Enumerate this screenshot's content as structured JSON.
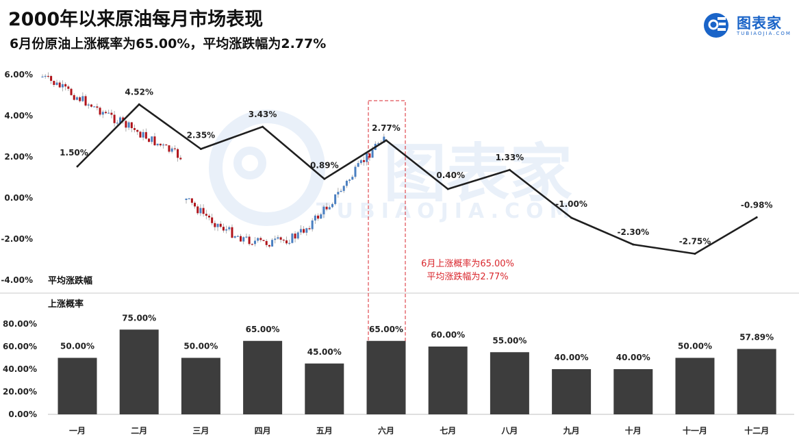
{
  "title": "2000年以来原油每月市场表现",
  "subtitle": "6月份原油上涨概率为65.00%，平均涨跌幅为2.77%",
  "logo": {
    "name": "图表家",
    "sub": "TUBIAOJIA.COM",
    "color": "#1a64c8"
  },
  "watermark": {
    "main": "图表家",
    "sub": "TUBIAOJIA.COM"
  },
  "colors": {
    "line": "#1f1f1f",
    "bar": "#3d3d3d",
    "up": "#4a7fc1",
    "down": "#b0131a",
    "highlight": "#d9262c"
  },
  "annotation": {
    "line1": "6月上涨概率为65.00%",
    "line2": "平均涨跌幅为2.77%",
    "highlight_month": "六月"
  },
  "chart_data": [
    {
      "type": "line",
      "ylabel": "平均涨跌幅",
      "ylim": [
        -0.04,
        0.06
      ],
      "yticks": [
        "6.00%",
        "4.00%",
        "2.00%",
        "0.00%",
        "-2.00%",
        "-4.00%"
      ],
      "categories": [
        "一月",
        "二月",
        "三月",
        "四月",
        "五月",
        "六月",
        "七月",
        "八月",
        "九月",
        "十月",
        "十一月",
        "十二月"
      ],
      "values": [
        0.015,
        0.0452,
        0.0235,
        0.0343,
        0.0089,
        0.0277,
        0.004,
        0.0133,
        -0.01,
        -0.023,
        -0.0275,
        -0.0098
      ],
      "labels": [
        "1.50%",
        "4.52%",
        "2.35%",
        "3.43%",
        "0.89%",
        "2.77%",
        "0.40%",
        "1.33%",
        "-1.00%",
        "-2.30%",
        "-2.75%",
        "-0.98%"
      ]
    },
    {
      "type": "bar",
      "ylabel": "上涨概率",
      "ylim": [
        0,
        0.8
      ],
      "yticks": [
        "80.00%",
        "60.00%",
        "40.00%",
        "20.00%",
        "0.00%"
      ],
      "categories": [
        "一月",
        "二月",
        "三月",
        "四月",
        "五月",
        "六月",
        "七月",
        "八月",
        "九月",
        "十月",
        "十一月",
        "十二月"
      ],
      "values": [
        0.5,
        0.75,
        0.5,
        0.65,
        0.45,
        0.65,
        0.6,
        0.55,
        0.4,
        0.4,
        0.5,
        0.5789
      ],
      "labels": [
        "50.00%",
        "75.00%",
        "50.00%",
        "65.00%",
        "45.00%",
        "65.00%",
        "60.00%",
        "55.00%",
        "40.00%",
        "40.00%",
        "50.00%",
        "57.89%"
      ]
    }
  ]
}
